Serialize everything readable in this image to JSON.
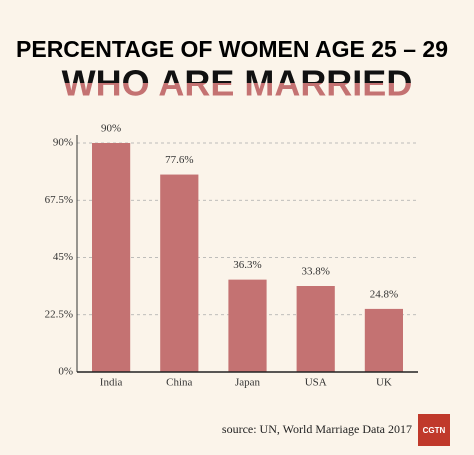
{
  "chart_data": {
    "type": "bar",
    "title": "PERCENTAGE OF WOMEN AGE 25 – 29",
    "subtitle": "WHO ARE MARRIED",
    "categories": [
      "India",
      "China",
      "Japan",
      "USA",
      "UK"
    ],
    "values": [
      90,
      77.6,
      36.3,
      33.8,
      24.8
    ],
    "value_labels": [
      "90%",
      "77.6%",
      "36.3%",
      "33.8%",
      "24.8%"
    ],
    "color": "#c47272",
    "ylim": [
      0,
      90
    ],
    "yticks": [
      {
        "value": 0,
        "label": "0%"
      },
      {
        "value": 22.5,
        "label": "22.5%"
      },
      {
        "value": 45,
        "label": "45%"
      },
      {
        "value": 67.5,
        "label": "67.5%"
      },
      {
        "value": 90,
        "label": "90%"
      }
    ],
    "grid": true,
    "source": "source: UN, World Marriage Data 2017",
    "logo": "CGTN"
  }
}
